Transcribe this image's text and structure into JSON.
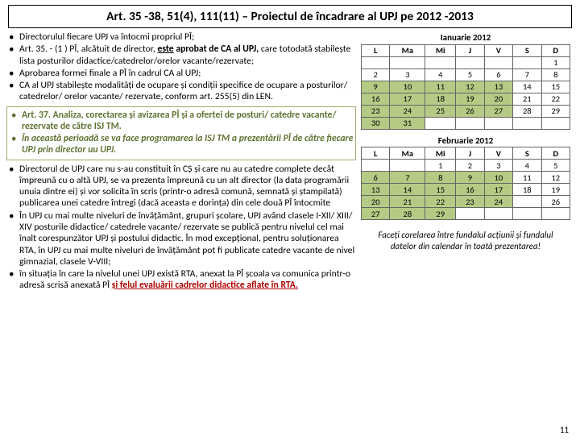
{
  "title": "Art. 35 -38, 51(4), 111(11) – Proiectul de încadrare al UPJ pe 2012 -2013",
  "bullets_a": [
    {
      "text": "Directorulul fiecare UPJ va întocmi propriul PÎ;"
    },
    {
      "html": "Art. 35. - (1 ) PÎ, alcătuit de director, <span class='uline bold'>este</span> <span class='bold'>aprobat de CA al UPJ,</span> care totodată stabilește lista posturilor didactice/catedrelor/orelor vacante/rezervate;"
    },
    {
      "text": "Aprobarea formei finale a PÎ în cadrul CA al UPJ;"
    },
    {
      "text": "CA al UPJ stabilește modalități de ocupare și condiții specifice de ocupare a posturilor/ catedrelor/ orelor vacante/ rezervate, conform art. 255(5) din LEN."
    }
  ],
  "bullets_b": [
    {
      "html": "<span class='green-text'>Art. 37. Analiza, corectarea și avizarea PÎ și a ofertei de posturi/ catedre vacante/ rezervate de către ISJ TM.</span>"
    },
    {
      "html": "<span class='green-ital'>În această perioadă se va face programarea la ISJ TM a prezentării PÎ de către fiecare UPJ prin director uu UPJ.</span>"
    }
  ],
  "bullets_c": [
    {
      "text": "Directorul de UPJ care nu s-au constituit în CȘ și care nu au catedre complete decât împreună cu o altă UPJ, se va prezenta împreună cu un alt director (la data programării unuia dintre ei) și vor solicita în scris (printr-o adresă comună, semnată și ștampilată) publicarea unei catedre întregi (dacă aceasta e dorința) din cele două PÎ întocmite"
    },
    {
      "text": "În UPJ cu mai multe niveluri de învățământ, grupuri școlare, UPJ având clasele I-XII/ XIII/ XIV posturile didactice/ catedrele vacante/ rezervate se publică pentru nivelul cel mai înalt corespunzător UPJ și postului didactic. În mod excepțional, pentru soluționarea RTA, în UPJ cu mai multe niveluri de învățământ pot fi publicate catedre vacante de nivel gimnazial, clasele V-VIII;"
    },
    {
      "html": "în situația în care la nivelul unei UPJ există RTA, anexat la PÎ școala va comunica printr-o adresă scrisă anexată PÎ <span class='red-u'>și felul evaluării cadrelor didactice aflate în RTA.</span>"
    }
  ],
  "calendars": [
    {
      "month": "Ianuarie 2012",
      "headers": [
        "L",
        "Ma",
        "Mi",
        "J",
        "V",
        "S",
        "D"
      ],
      "rows": [
        [
          "",
          "",
          "",
          "",
          "",
          "",
          "1"
        ],
        [
          "2",
          "3",
          "4",
          "5",
          "6",
          "7",
          "8"
        ],
        [
          "9",
          "10",
          "11",
          "12",
          "13",
          "14",
          "15"
        ],
        [
          "16",
          "17",
          "18",
          "19",
          "20",
          "21",
          "22"
        ],
        [
          "23",
          "24",
          "25",
          "26",
          "27",
          "28",
          "29"
        ],
        [
          "30",
          "31",
          "",
          "",
          "",
          "",
          ""
        ]
      ],
      "marks": [
        [
          2,
          0
        ],
        [
          2,
          1
        ],
        [
          2,
          2
        ],
        [
          2,
          3
        ],
        [
          2,
          4
        ],
        [
          3,
          0
        ],
        [
          3,
          1
        ],
        [
          3,
          2
        ],
        [
          3,
          3
        ],
        [
          3,
          4
        ],
        [
          4,
          0
        ],
        [
          4,
          1
        ],
        [
          4,
          2
        ],
        [
          4,
          3
        ],
        [
          4,
          4
        ],
        [
          5,
          0
        ],
        [
          5,
          1
        ]
      ]
    },
    {
      "month": "Februarie 2012",
      "headers": [
        "L",
        "Ma",
        "Mi",
        "J",
        "V",
        "S",
        "D"
      ],
      "rows": [
        [
          "",
          "",
          "1",
          "2",
          "3",
          "4",
          "5"
        ],
        [
          "6",
          "7",
          "8",
          "9",
          "10",
          "11",
          "12"
        ],
        [
          "13",
          "14",
          "15",
          "16",
          "17",
          "18",
          "19"
        ],
        [
          "20",
          "21",
          "22",
          "23",
          "24",
          "",
          "26"
        ],
        [
          "27",
          "28",
          "29",
          "",
          "",
          "",
          ""
        ]
      ],
      "marks": [
        [
          1,
          0
        ],
        [
          1,
          1
        ],
        [
          1,
          2
        ],
        [
          1,
          3
        ],
        [
          1,
          4
        ],
        [
          2,
          0
        ],
        [
          2,
          1
        ],
        [
          2,
          2
        ],
        [
          2,
          3
        ],
        [
          2,
          4
        ],
        [
          3,
          0
        ],
        [
          3,
          1
        ],
        [
          3,
          2
        ],
        [
          3,
          3
        ],
        [
          3,
          4
        ],
        [
          4,
          0
        ],
        [
          4,
          1
        ],
        [
          4,
          2
        ]
      ]
    }
  ],
  "note": "Faceți corelarea între fundalul acțiunii și fundalul datelor din calendar în toată prezentarea!",
  "page_number": "11",
  "colors": {
    "mark_bg": "#b5cb85",
    "green": "#5f7232",
    "red": "#b00000"
  }
}
